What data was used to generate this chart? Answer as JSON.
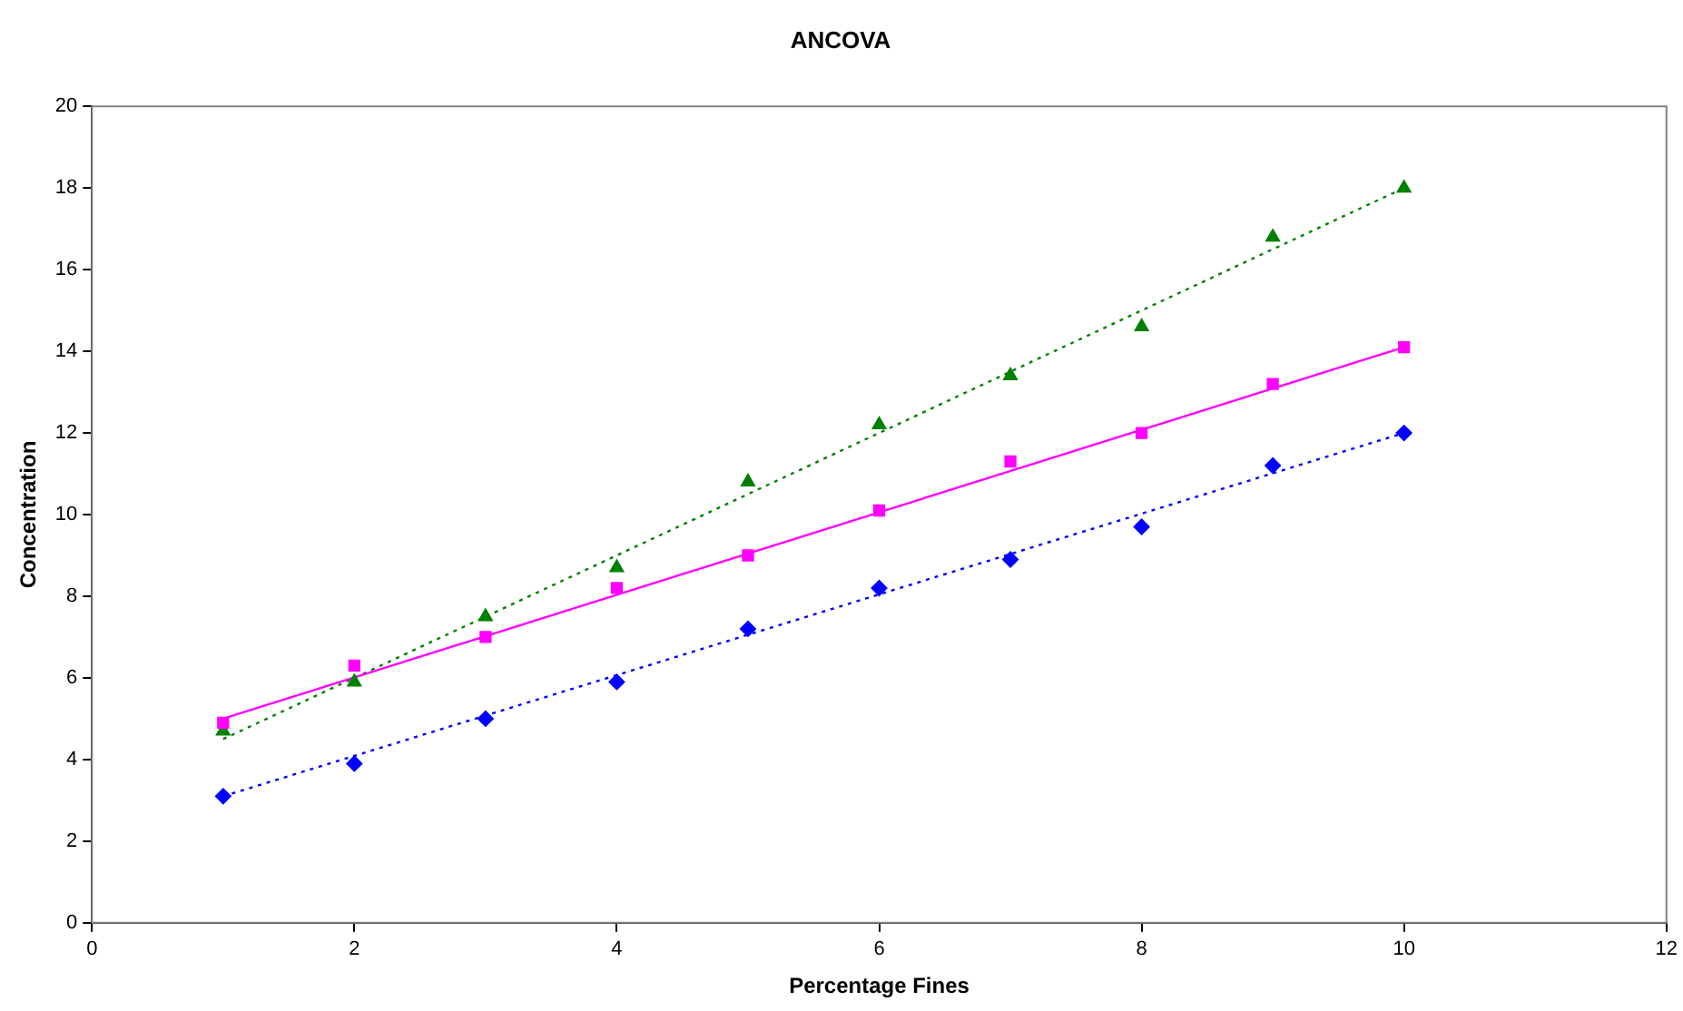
{
  "chart_data": {
    "type": "scatter",
    "title": "ANCOVA",
    "xlabel": "Percentage Fines",
    "ylabel": "Concentration",
    "xlim": [
      0,
      12
    ],
    "xticks": [
      0,
      2,
      4,
      6,
      8,
      10,
      12
    ],
    "ylim": [
      0,
      20
    ],
    "yticks": [
      0,
      2,
      4,
      6,
      8,
      10,
      12,
      14,
      16,
      18,
      20
    ],
    "grid": false,
    "legend": false,
    "series": [
      {
        "type": "scatter",
        "color": "#0000ff",
        "marker": "diamond",
        "x": [
          1,
          2,
          3,
          4,
          5,
          6,
          7,
          8,
          9,
          10
        ],
        "values": [
          3.1,
          3.9,
          5.0,
          5.9,
          7.2,
          8.2,
          8.9,
          9.7,
          11.2,
          12.0
        ]
      },
      {
        "type": "scatter",
        "color": "#ff00ff",
        "marker": "square",
        "x": [
          1,
          2,
          3,
          4,
          5,
          6,
          7,
          8,
          9,
          10
        ],
        "values": [
          4.9,
          6.3,
          7.0,
          8.2,
          9.0,
          10.1,
          11.3,
          12.0,
          13.2,
          14.1
        ]
      },
      {
        "type": "scatter",
        "color": "#008000",
        "marker": "triangle",
        "x": [
          1,
          2,
          3,
          4,
          5,
          6,
          7,
          8,
          9,
          10
        ],
        "values": [
          4.7,
          5.9,
          7.5,
          8.7,
          10.8,
          12.2,
          13.4,
          14.6,
          16.8,
          18.0
        ]
      },
      {
        "type": "line",
        "color": "#0000ff",
        "marker": "none",
        "line_style": "dotted",
        "x": [
          1,
          10
        ],
        "values": [
          3.1,
          12.0
        ]
      },
      {
        "type": "line",
        "color": "#ff00ff",
        "marker": "none",
        "line_style": "solid",
        "x": [
          1,
          10
        ],
        "values": [
          5.0,
          14.1
        ]
      },
      {
        "type": "line",
        "color": "#008000",
        "marker": "none",
        "line_style": "dotted",
        "x": [
          1,
          10
        ],
        "values": [
          4.5,
          18.0
        ]
      }
    ]
  }
}
